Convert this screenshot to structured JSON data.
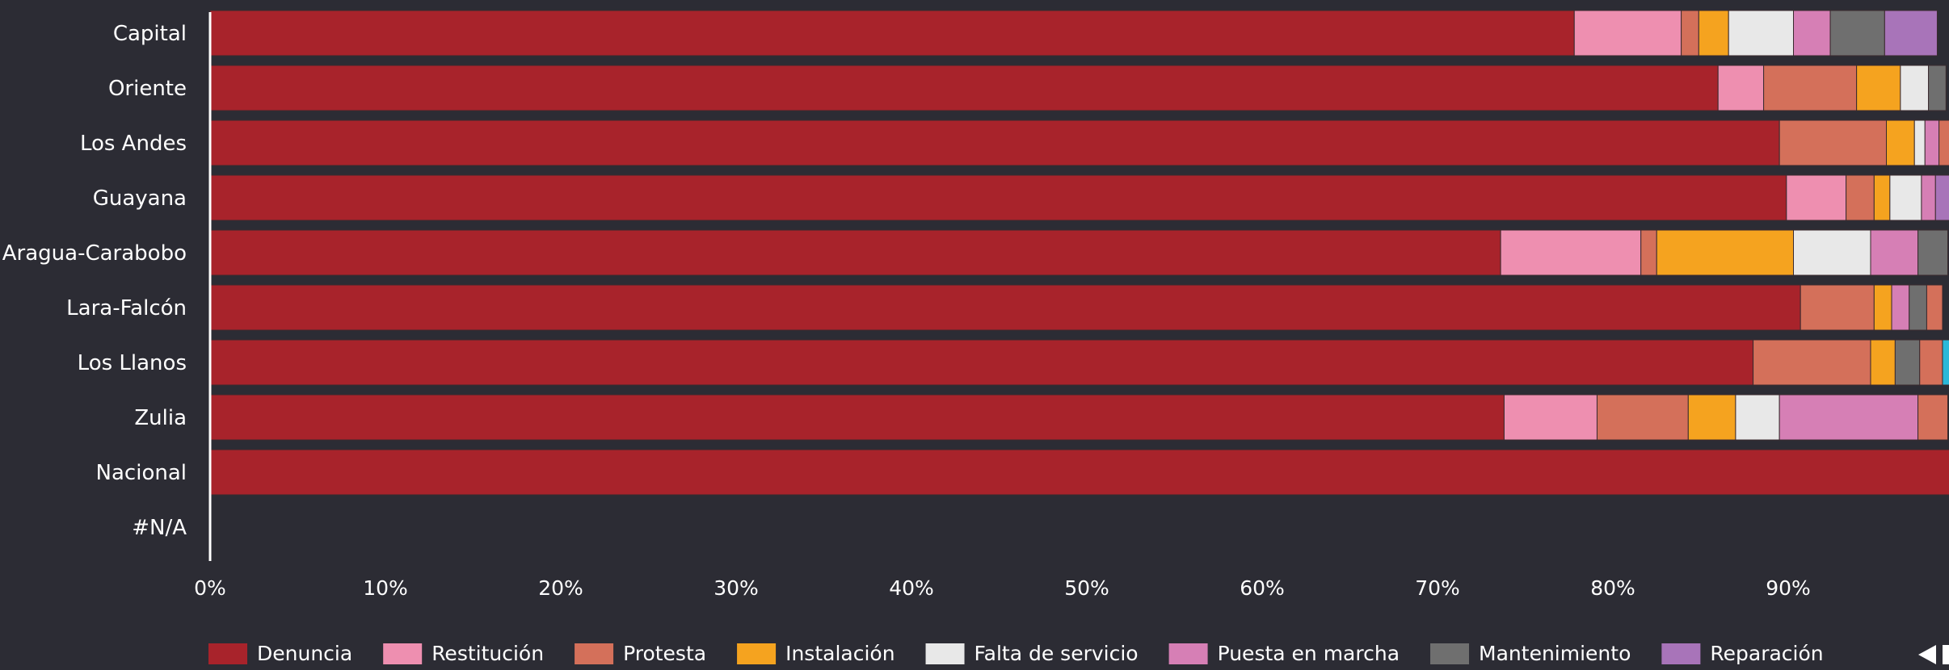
{
  "chart_data": {
    "type": "bar",
    "orientation": "horizontal",
    "stacked": "percent",
    "categories": [
      "Capital",
      "Oriente",
      "Los Andes",
      "Guayana",
      "Aragua-Carabobo",
      "Lara-Falcón",
      "Los Llanos",
      "Zulia",
      "Nacional",
      "#N/A"
    ],
    "series": [
      {
        "name": "Denuncia",
        "color": "#a8232b",
        "values": [
          77.8,
          86.0,
          89.5,
          89.9,
          73.6,
          90.7,
          88.0,
          73.8,
          100,
          0
        ]
      },
      {
        "name": "Restitución",
        "color": "#ee8fb0",
        "values": [
          6.1,
          2.6,
          0.0,
          3.4,
          8.0,
          0.0,
          0.0,
          5.3,
          0,
          0
        ]
      },
      {
        "name": "Protesta",
        "color": "#d4705a",
        "values": [
          1.0,
          5.3,
          6.1,
          1.6,
          0.9,
          4.2,
          6.7,
          5.2,
          0,
          0
        ]
      },
      {
        "name": "Instalación",
        "color": "#f5a31f",
        "values": [
          1.7,
          2.5,
          1.6,
          0.9,
          7.8,
          1.0,
          1.4,
          2.7,
          0,
          0
        ]
      },
      {
        "name": "Falta de servicio",
        "color": "#e8e8e8",
        "values": [
          3.7,
          1.6,
          0.6,
          1.8,
          4.4,
          0.0,
          0.0,
          2.5,
          0,
          0
        ]
      },
      {
        "name": "Puesta en marcha",
        "color": "#d67fb5",
        "values": [
          2.1,
          0.0,
          0.8,
          0.8,
          2.7,
          1.0,
          0.0,
          7.9,
          0,
          0
        ]
      },
      {
        "name": "Mantenimiento",
        "color": "#6f6f6f",
        "values": [
          3.1,
          1.0,
          0.0,
          0.0,
          1.7,
          1.0,
          1.4,
          0.0,
          0,
          0
        ]
      },
      {
        "name": "Reparación",
        "color": "#a874b9",
        "values": [
          3.0,
          0.0,
          0.0,
          0.9,
          0.0,
          0.0,
          0.0,
          0.0,
          0,
          0
        ]
      },
      {
        "name": "",
        "color": "#d4705a",
        "values": [
          0.0,
          0.0,
          0.8,
          0.0,
          0.0,
          0.9,
          1.3,
          1.7,
          0,
          0
        ]
      },
      {
        "name": "",
        "color": "#2bb8d8",
        "values": [
          0.0,
          0.0,
          0.0,
          0.0,
          0.0,
          0.0,
          0.6,
          0.0,
          0,
          0
        ]
      }
    ],
    "xlim": [
      0,
      100
    ],
    "x_ticks": [
      "0%",
      "10%",
      "20%",
      "30%",
      "40%",
      "50%",
      "60%",
      "70%",
      "80%",
      "90%"
    ],
    "legend": {
      "placement": "bottom",
      "entries": [
        "Denuncia",
        "Restitución",
        "Protesta",
        "Instalación",
        "Falta de servicio",
        "Puesta en marcha",
        "Mantenimiento",
        "Reparación"
      ],
      "pager_icon": "left-triangle-icon"
    },
    "grid": false,
    "title": "",
    "xlabel": "",
    "ylabel": ""
  },
  "colors": {
    "background": "#2c2c34",
    "text": "#ffffff",
    "axis": "#ffffff"
  }
}
